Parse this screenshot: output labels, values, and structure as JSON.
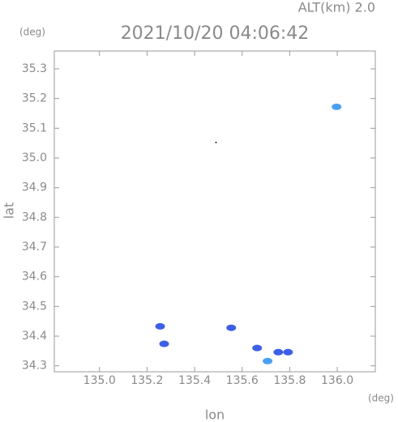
{
  "chart_data": {
    "type": "scatter",
    "title": "2021/10/20 04:06:42",
    "annotation": "ALT(km) 2.0",
    "xlabel": "lon",
    "xunit": "(deg)",
    "ylabel": "lat",
    "yunit": "(deg)",
    "xlim": [
      134.81,
      136.16
    ],
    "ylim": [
      34.28,
      35.36
    ],
    "xticks": [
      {
        "value": 135,
        "label": "135.0"
      },
      135.2,
      135.4,
      135.6,
      135.8,
      {
        "value": 136,
        "label": "136.0"
      }
    ],
    "yticks": [
      34.3,
      34.4,
      34.5,
      34.6,
      34.7,
      34.8,
      34.9,
      {
        "value": 35,
        "label": "35.0"
      },
      35.1,
      35.2,
      35.3
    ],
    "grid": false,
    "series": [
      {
        "color": "#3d5fe6",
        "x": [
          135.255,
          135.272,
          135.554,
          135.663,
          135.752,
          135.793
        ],
        "y": [
          34.433,
          34.374,
          34.428,
          34.36,
          34.346,
          34.346
        ]
      },
      {
        "color": "#4aa0f0",
        "x": [
          135.997,
          135.707
        ],
        "y": [
          35.172,
          34.316
        ]
      },
      {
        "color": "#222222",
        "x": [
          135.49
        ],
        "y": [
          35.052
        ]
      }
    ]
  }
}
